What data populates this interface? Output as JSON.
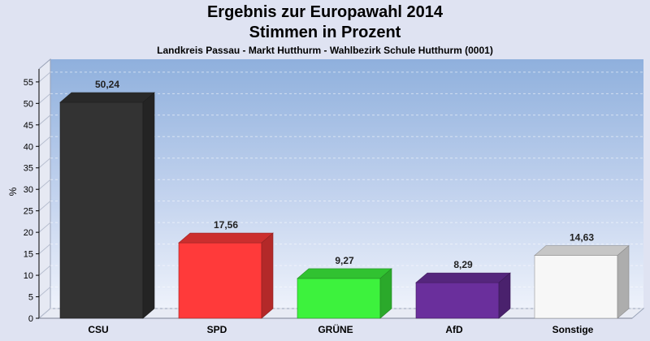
{
  "chart_data": {
    "type": "bar",
    "title": "Ergebnis zur Europawahl 2014",
    "subtitle_line": "Stimmen in Prozent",
    "subtitle": "Landkreis Passau - Markt Hutthurm - Wahlbezirk Schule Hutthurm (0001)",
    "ylabel": "%",
    "xlabel": "",
    "ylim": [
      0,
      58
    ],
    "yticks": [
      0,
      5,
      10,
      15,
      20,
      25,
      30,
      35,
      40,
      45,
      50,
      55
    ],
    "grid": true,
    "categories": [
      "CSU",
      "SPD",
      "GRÜNE",
      "AfD",
      "Sonstige"
    ],
    "values": [
      50.24,
      17.56,
      9.27,
      8.29,
      14.63
    ],
    "value_labels": [
      "50,24",
      "17,56",
      "9,27",
      "8,29",
      "14,63"
    ],
    "colors": [
      "#333333",
      "#ff3a3a",
      "#3df23d",
      "#6a2f9c",
      "#f7f7f7"
    ]
  }
}
